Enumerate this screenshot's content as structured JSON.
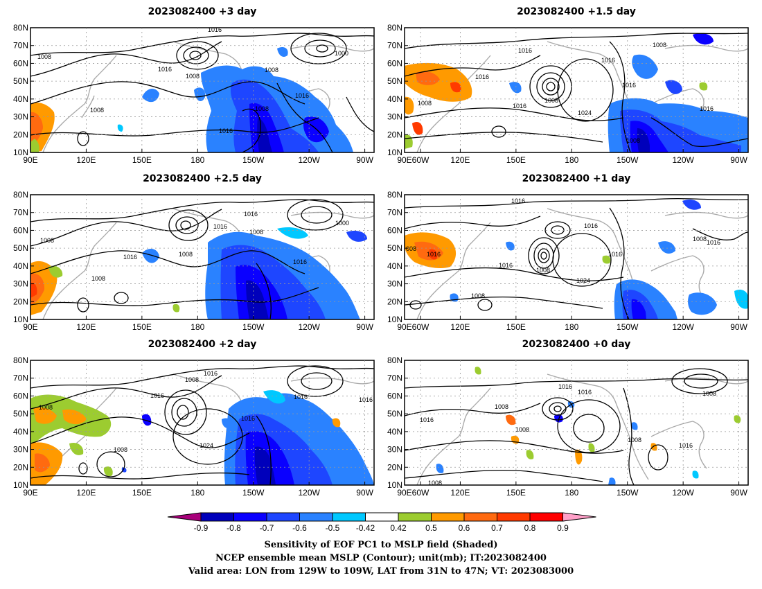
{
  "panels": [
    {
      "title": "2023082400 +3 day",
      "pressure_labels": [
        "1016",
        "1008",
        "1000",
        "1008",
        "1016",
        "1008",
        "1008",
        "1016",
        "1008",
        "1016"
      ]
    },
    {
      "title": "2023082400 +1.5 day",
      "pressure_labels": [
        "1008",
        "1016",
        "1016",
        "1016",
        "1008",
        "1016",
        "1024",
        "1008",
        "1016",
        "1008",
        "1016"
      ]
    },
    {
      "title": "2023082400 +2.5 day",
      "pressure_labels": [
        "1016",
        "1008",
        "1000",
        "1008",
        "1016",
        "1016",
        "1008",
        "1008",
        "1016"
      ]
    },
    {
      "title": "2023082400 +1 day",
      "pressure_labels": [
        "1016",
        "008",
        "1016",
        "1016",
        "1016",
        "1016",
        "1008",
        "1024",
        "1008",
        "1008",
        "1016"
      ]
    },
    {
      "title": "2023082400 +2 day",
      "pressure_labels": [
        "1016",
        "1008",
        "1008",
        "1016",
        "1016",
        "1016",
        "1016",
        "1024",
        "1008"
      ]
    },
    {
      "title": "2023082400 +0 day",
      "pressure_labels": [
        "1016",
        "1016",
        "1008",
        "1016",
        "1008",
        "1008",
        "1016",
        "1008",
        "1008"
      ]
    }
  ],
  "axes": {
    "lat_ticks": [
      "80N",
      "70N",
      "60N",
      "50N",
      "40N",
      "30N",
      "20N",
      "10N"
    ],
    "lon_ticks": [
      "90E",
      "120E",
      "150E",
      "180",
      "150W",
      "120W",
      "90W",
      "60W"
    ]
  },
  "colorbar": {
    "ticks": [
      "-0.9",
      "-0.8",
      "-0.7",
      "-0.6",
      "-0.5",
      "-0.42",
      "0.42",
      "0.5",
      "0.6",
      "0.7",
      "0.8",
      "0.9"
    ],
    "colors": [
      "#a8007a",
      "#0000bb",
      "#0a00ff",
      "#1e46ff",
      "#2a82ff",
      "#00c8ff",
      "#ffffff",
      "#9ccc30",
      "#ff9a00",
      "#ff6a10",
      "#ff3a00",
      "#ff0000",
      "#ffa0c8"
    ]
  },
  "caption": {
    "line1": "Sensitivity of EOF PC1 to MSLP field (Shaded)",
    "line2": "NCEP ensemble mean MSLP (Contour); unit(mb); IT:2023082400",
    "line3": "Valid area: LON from 129W to 109W, LAT from 31N to 47N; VT: 2023083000"
  }
}
